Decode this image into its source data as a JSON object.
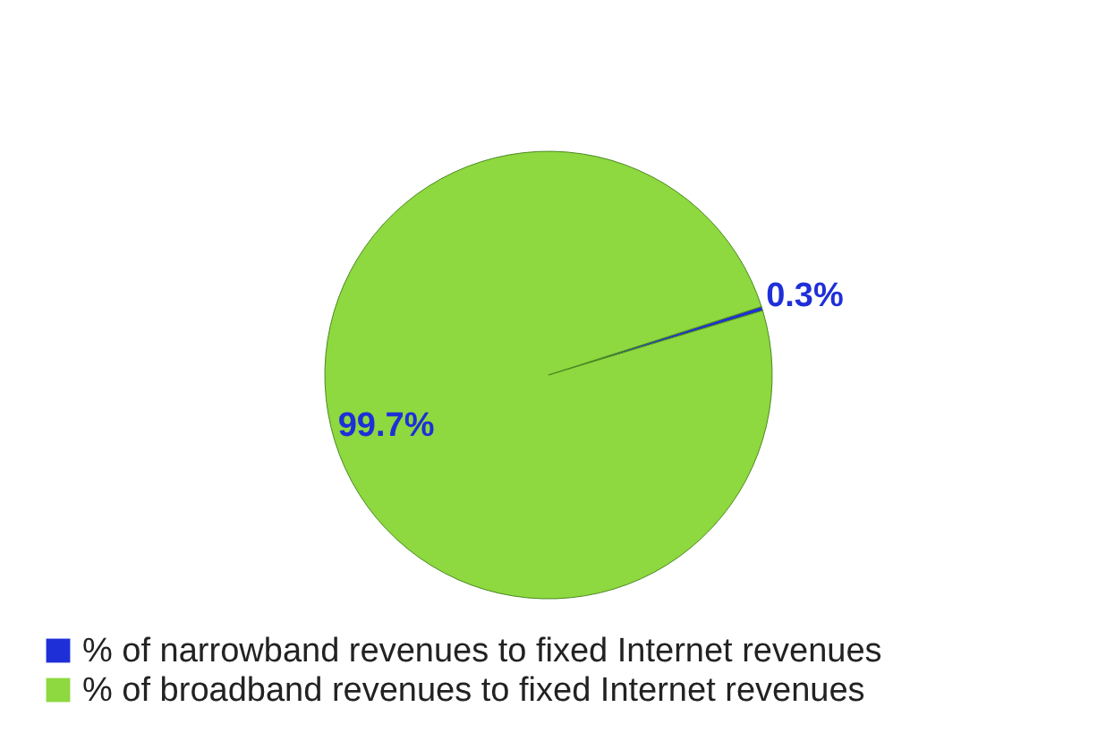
{
  "chart_data": {
    "type": "pie",
    "categories": [
      "% of narrowband revenues to fixed Internet revenues",
      "% of broadband revenues to fixed Internet revenues"
    ],
    "values": [
      0.3,
      99.7
    ],
    "colors": [
      "#1f2fd8",
      "#8ed840"
    ],
    "value_labels": [
      "0.3%",
      "99.7%"
    ],
    "legend": "bottom"
  }
}
